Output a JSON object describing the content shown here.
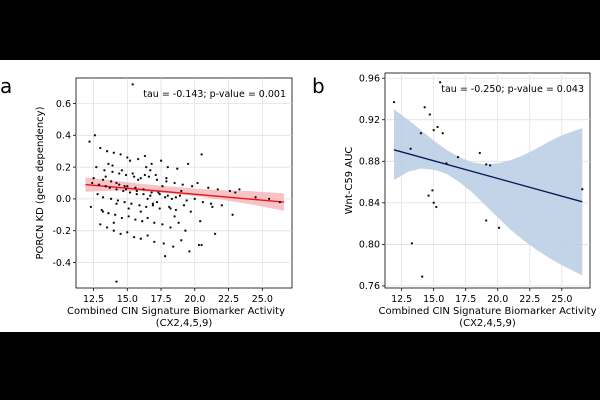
{
  "chart_data": [
    {
      "panel_label": "a",
      "type": "scatter",
      "annotation": "tau = -0.143; p-value = 0.001",
      "xlabel": "Combined CIN Signature Biomarker Activity",
      "xlabel_sub": "(CX2,4,5,9)",
      "ylabel": "PORCN KD (gene dependency)",
      "xlim": [
        11.2,
        27.2
      ],
      "ylim": [
        -0.56,
        0.76
      ],
      "x_ticks": [
        12.5,
        15.0,
        17.5,
        20.0,
        22.5,
        25.0
      ],
      "x_tick_labels": [
        "12.5",
        "15.0",
        "17.5",
        "20.0",
        "22.5",
        "25.0"
      ],
      "y_ticks": [
        -0.4,
        -0.2,
        0.0,
        0.2,
        0.4,
        0.6
      ],
      "y_tick_labels": [
        "-0.4",
        "-0.2",
        "0.0",
        "0.2",
        "0.4",
        "0.6"
      ],
      "grid": true,
      "colors": {
        "line": "#e8141b",
        "band": "#f7b9bc",
        "points": "#111111"
      },
      "regression": {
        "x": [
          11.9,
          26.6
        ],
        "y": [
          0.09,
          -0.02
        ]
      },
      "ci_band": {
        "x": [
          11.9,
          14.0,
          16.0,
          18.0,
          20.0,
          22.0,
          24.0,
          26.6
        ],
        "lower": [
          0.045,
          0.052,
          0.048,
          0.035,
          0.018,
          -0.005,
          -0.032,
          -0.075
        ],
        "upper": [
          0.135,
          0.115,
          0.095,
          0.08,
          0.065,
          0.055,
          0.05,
          0.035
        ]
      },
      "points": {
        "x": [
          15.4,
          12.6,
          12.2,
          13.0,
          13.5,
          14.0,
          14.5,
          15.0,
          15.8,
          16.3,
          16.8,
          17.5,
          18.0,
          18.7,
          19.5,
          20.5,
          12.7,
          13.3,
          13.9,
          14.4,
          14.9,
          15.5,
          16.0,
          16.6,
          17.2,
          17.9,
          18.5,
          19.1,
          19.8,
          20.2,
          21.0,
          21.7,
          22.6,
          23.3,
          24.5,
          26.3,
          12.4,
          12.9,
          13.4,
          13.7,
          14.2,
          14.7,
          15.2,
          15.7,
          16.2,
          16.7,
          17.3,
          17.8,
          18.3,
          18.9,
          19.4,
          20.0,
          20.6,
          21.2,
          22.0,
          12.8,
          13.2,
          13.8,
          14.3,
          14.8,
          15.3,
          15.9,
          16.4,
          16.9,
          17.4,
          18.1,
          18.6,
          19.2,
          19.7,
          12.3,
          13.1,
          13.6,
          14.1,
          14.6,
          15.1,
          15.6,
          16.1,
          16.5,
          17.0,
          17.6,
          18.2,
          18.8,
          19.3,
          20.4,
          21.5,
          22.8,
          13.0,
          13.5,
          14.0,
          14.5,
          15.0,
          15.5,
          16.0,
          16.5,
          17.0,
          17.7,
          18.4,
          19.0,
          19.6,
          20.3,
          13.2,
          13.8,
          14.4,
          15.0,
          15.6,
          16.2,
          16.8,
          17.4,
          18.0,
          18.6,
          13.4,
          14.2,
          14.9,
          15.7,
          16.5,
          17.2,
          18.2,
          13.6,
          14.6,
          15.4,
          16.4,
          17.1,
          17.9,
          14.2,
          15.1,
          16.0,
          16.9,
          14.8,
          15.8,
          14.2,
          17.8,
          20.5,
          13.2,
          14.0,
          18.5,
          16.7,
          23.0,
          25.5,
          12.5,
          13.9,
          15.2,
          16.3,
          17.6,
          19.0,
          21.3
        ],
        "y": [
          0.72,
          0.4,
          0.36,
          0.32,
          0.3,
          0.29,
          0.28,
          0.26,
          0.25,
          0.27,
          0.22,
          0.24,
          0.2,
          0.19,
          0.22,
          0.28,
          0.2,
          0.18,
          0.17,
          0.16,
          0.15,
          0.14,
          0.13,
          0.14,
          0.12,
          0.11,
          0.1,
          0.09,
          0.08,
          0.1,
          0.07,
          0.06,
          0.05,
          0.06,
          0.01,
          -0.02,
          0.1,
          0.09,
          0.08,
          0.07,
          0.06,
          0.05,
          0.04,
          0.05,
          0.03,
          0.02,
          0.04,
          0.01,
          0.0,
          0.02,
          -0.01,
          0.0,
          -0.02,
          -0.03,
          -0.04,
          0.03,
          0.01,
          0.0,
          -0.01,
          -0.02,
          -0.03,
          -0.04,
          -0.05,
          -0.03,
          -0.06,
          -0.05,
          -0.07,
          -0.04,
          -0.08,
          -0.05,
          -0.07,
          -0.09,
          -0.1,
          -0.12,
          -0.11,
          -0.13,
          -0.14,
          -0.12,
          -0.15,
          -0.16,
          -0.18,
          -0.15,
          -0.2,
          -0.14,
          -0.22,
          -0.1,
          -0.16,
          -0.18,
          -0.2,
          -0.22,
          -0.21,
          -0.24,
          -0.25,
          -0.23,
          -0.27,
          -0.28,
          -0.3,
          -0.26,
          -0.33,
          -0.29,
          0.12,
          0.11,
          0.09,
          0.08,
          0.07,
          0.06,
          0.04,
          0.03,
          0.02,
          0.01,
          0.14,
          0.1,
          0.06,
          0.03,
          0.0,
          -0.02,
          -0.06,
          0.22,
          0.18,
          0.16,
          0.2,
          0.15,
          0.13,
          -0.03,
          -0.06,
          -0.08,
          -0.04,
          0.08,
          0.12,
          -0.52,
          -0.36,
          -0.29,
          -0.08,
          -0.15,
          -0.11,
          0.18,
          0.04,
          0.0,
          0.13,
          0.21,
          0.24,
          0.15,
          0.08,
          0.05,
          -0.05
        ]
      }
    },
    {
      "panel_label": "b",
      "type": "scatter",
      "annotation": "tau = -0.250; p-value = 0.043",
      "xlabel": "Combined CIN Signature Biomarker Activity",
      "xlabel_sub": "(CX2,4,5,9)",
      "ylabel": "Wnt-C59 AUC",
      "xlim": [
        11.2,
        27.2
      ],
      "ylim": [
        0.758,
        0.965
      ],
      "x_ticks": [
        12.5,
        15.0,
        17.5,
        20.0,
        22.5,
        25.0
      ],
      "x_tick_labels": [
        "12.5",
        "15.0",
        "17.5",
        "20.0",
        "22.5",
        "25.0"
      ],
      "y_ticks": [
        0.76,
        0.8,
        0.84,
        0.88,
        0.92,
        0.96
      ],
      "y_tick_labels": [
        "0.76",
        "0.80",
        "0.84",
        "0.88",
        "0.92",
        "0.96"
      ],
      "grid": true,
      "colors": {
        "line": "#0b1a5c",
        "band": "#b8cde4",
        "points": "#111111"
      },
      "regression": {
        "x": [
          11.9,
          26.6
        ],
        "y": [
          0.891,
          0.841
        ]
      },
      "ci_band": {
        "x": [
          11.9,
          13.0,
          14.0,
          15.0,
          16.0,
          17.0,
          18.0,
          19.0,
          20.0,
          21.0,
          22.0,
          23.0,
          24.0,
          25.0,
          26.6
        ],
        "lower": [
          0.862,
          0.87,
          0.873,
          0.872,
          0.868,
          0.86,
          0.85,
          0.838,
          0.826,
          0.814,
          0.804,
          0.795,
          0.787,
          0.78,
          0.77
        ],
        "upper": [
          0.93,
          0.92,
          0.91,
          0.9,
          0.891,
          0.884,
          0.879,
          0.877,
          0.878,
          0.881,
          0.886,
          0.892,
          0.899,
          0.905,
          0.912
        ]
      },
      "points": {
        "x": [
          15.5,
          11.9,
          14.3,
          14.7,
          15.3,
          15.0,
          15.7,
          14.0,
          13.2,
          16.9,
          18.6,
          19.1,
          19.4,
          14.9,
          14.6,
          15.0,
          15.2,
          16.0,
          19.1,
          20.1,
          13.3,
          14.1,
          26.6
        ],
        "y": [
          0.956,
          0.937,
          0.932,
          0.925,
          0.913,
          0.91,
          0.907,
          0.907,
          0.892,
          0.884,
          0.888,
          0.877,
          0.876,
          0.852,
          0.847,
          0.84,
          0.836,
          0.878,
          0.823,
          0.816,
          0.801,
          0.769,
          0.853
        ]
      }
    }
  ]
}
